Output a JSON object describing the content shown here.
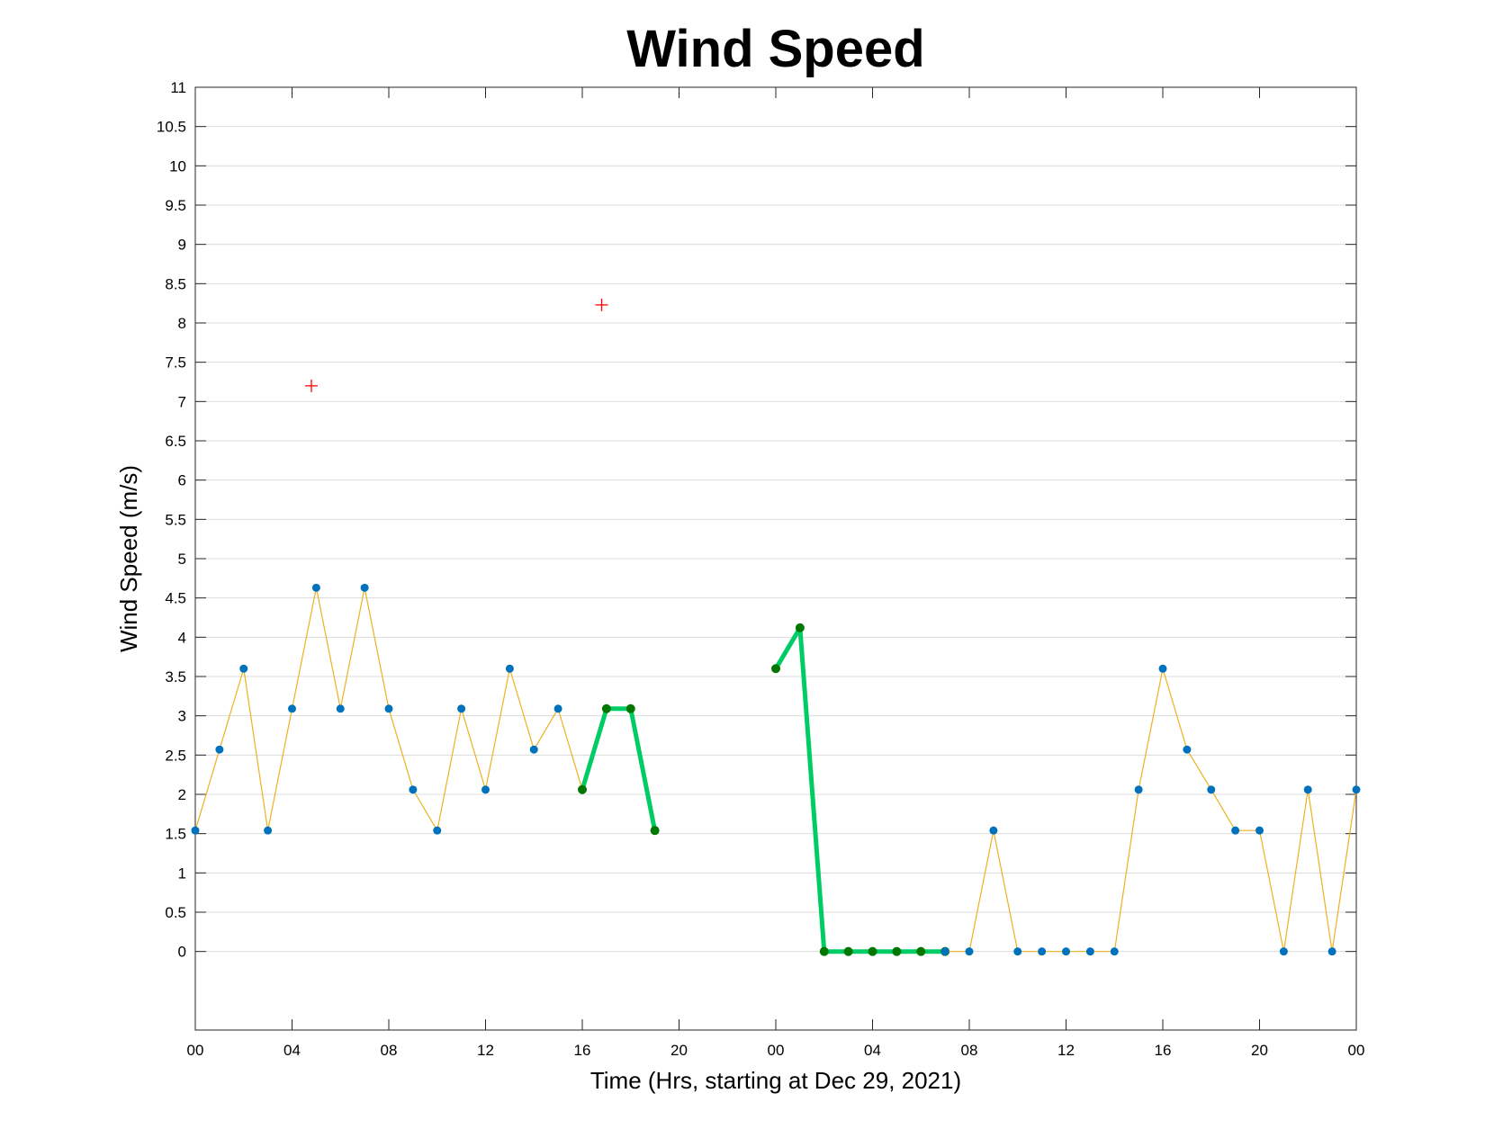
{
  "chart_data": {
    "type": "line",
    "title": "Wind Speed",
    "xlabel": "Time (Hrs, starting at Dec 29, 2021)",
    "ylabel": "Wind Speed (m/s)",
    "xlim": [
      0,
      48
    ],
    "ylim": [
      -1,
      11
    ],
    "yticks": [
      0,
      0.5,
      1,
      1.5,
      2,
      2.5,
      3,
      3.5,
      4,
      4.5,
      5,
      5.5,
      6,
      6.5,
      7,
      7.5,
      8,
      8.5,
      9,
      9.5,
      10,
      10.5,
      11
    ],
    "ytick_labels": [
      "0",
      "0.5",
      "1",
      "1.5",
      "2",
      "2.5",
      "3",
      "3.5",
      "4",
      "4.5",
      "5",
      "5.5",
      "6",
      "6.5",
      "7",
      "7.5",
      "8",
      "8.5",
      "9",
      "9.5",
      "10",
      "10.5",
      "11"
    ],
    "xticks": [
      0,
      4,
      8,
      12,
      16,
      20,
      24,
      28,
      32,
      36,
      40,
      44,
      48
    ],
    "xtick_labels": [
      "00",
      "04",
      "08",
      "12",
      "16",
      "20",
      "00",
      "04",
      "08",
      "12",
      "16",
      "20",
      "00"
    ],
    "grid": "horizontal",
    "series": [
      {
        "style": "thin-line-with-markers",
        "color": "#EDB120",
        "marker_color": "#0072BD",
        "x": [
          0,
          1,
          2,
          3,
          4,
          5,
          6,
          7,
          8,
          9,
          10,
          11,
          12,
          13,
          14,
          15,
          16
        ],
        "y": [
          1.54,
          2.57,
          3.6,
          1.54,
          3.09,
          4.63,
          3.09,
          4.63,
          3.09,
          2.06,
          1.54,
          3.09,
          2.06,
          3.6,
          2.57,
          3.09,
          2.06
        ]
      },
      {
        "style": "thick-line-with-markers",
        "color": "#00CC66",
        "marker_color": "#007700",
        "x": [
          16,
          17,
          18,
          19
        ],
        "y": [
          2.06,
          3.09,
          3.09,
          1.54
        ]
      },
      {
        "style": "thick-line-with-markers",
        "color": "#00CC66",
        "marker_color": "#007700",
        "x": [
          24,
          25,
          26,
          27,
          28,
          29,
          30,
          31
        ],
        "y": [
          3.6,
          4.12,
          0,
          0,
          0,
          0,
          0,
          0
        ]
      },
      {
        "style": "thin-line-with-markers",
        "color": "#EDB120",
        "marker_color": "#0072BD",
        "x": [
          31,
          32,
          33,
          34,
          35,
          36,
          37,
          38,
          39,
          40,
          41,
          42,
          43,
          44,
          45,
          46,
          47,
          48
        ],
        "y": [
          0,
          0,
          1.54,
          0,
          0,
          0,
          0,
          0,
          2.06,
          3.6,
          2.57,
          2.06,
          1.54,
          1.54,
          0,
          2.06,
          0,
          2.06
        ]
      }
    ],
    "outliers": {
      "marker": "plus",
      "color": "#FF0000",
      "x": [
        4.8,
        16.8
      ],
      "y": [
        7.2,
        8.23
      ]
    }
  }
}
